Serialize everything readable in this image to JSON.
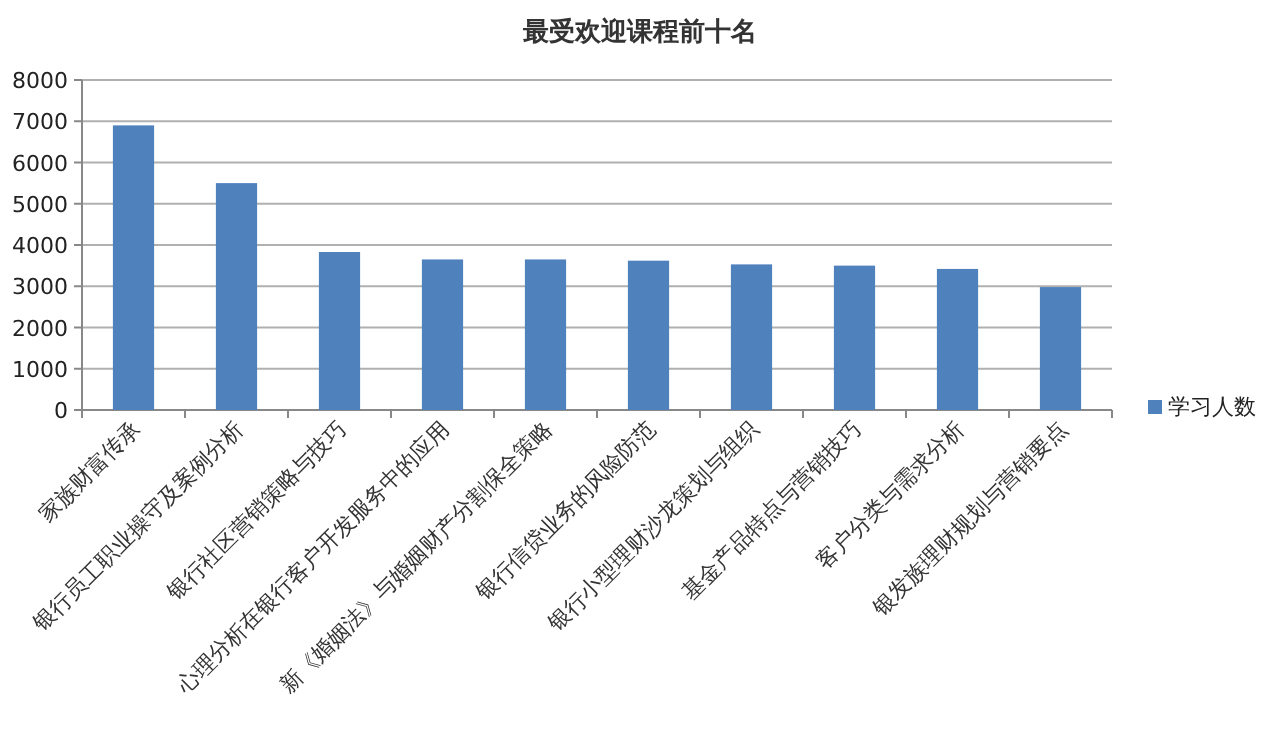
{
  "chart_data": {
    "type": "bar",
    "title": "最受欢迎课程前十名",
    "categories": [
      "家族财富传承",
      "银行员工职业操守及案例分析",
      "银行社区营销策略与技巧",
      "心理分析在银行客户开发服务中的应用",
      "新《婚姻法》与婚姻财产分割保全策略",
      "银行信贷业务的风险防范",
      "银行小型理财沙龙策划与组织",
      "基金产品特点与营销技巧",
      "客户分类与需求分析",
      "银发族理财规划与营销要点"
    ],
    "series": [
      {
        "name": "学习人数",
        "color": "#4f81bd",
        "values": [
          6900,
          5500,
          3830,
          3650,
          3650,
          3620,
          3530,
          3500,
          3420,
          2980
        ]
      }
    ],
    "ylim": [
      0,
      8000
    ],
    "yticks": [
      0,
      1000,
      2000,
      3000,
      4000,
      5000,
      6000,
      7000,
      8000
    ],
    "grid": "y",
    "legend": "right"
  }
}
